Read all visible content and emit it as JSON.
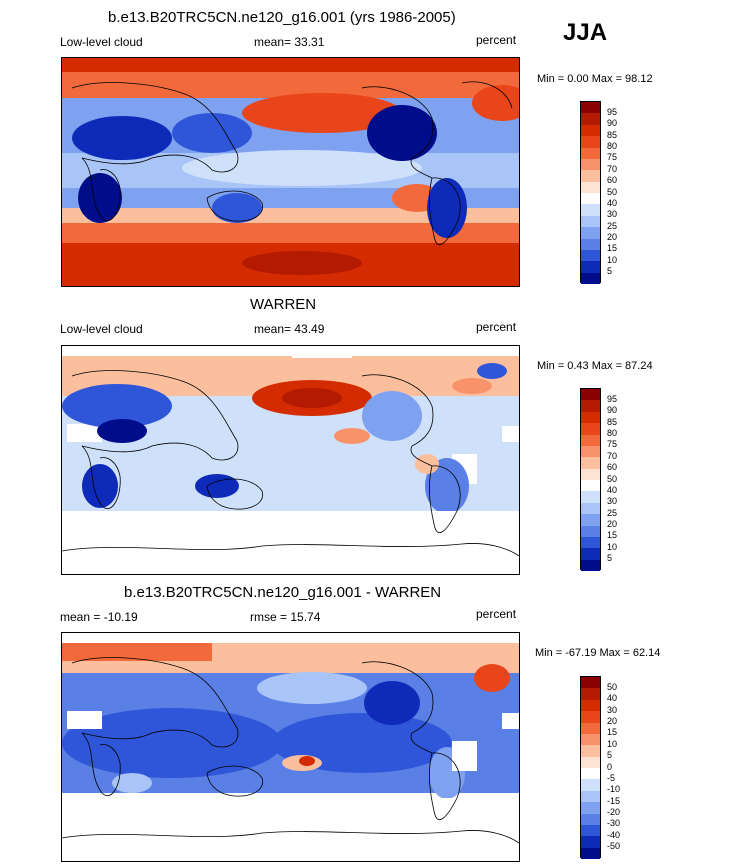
{
  "season": "JJA",
  "panels": [
    {
      "title": "b.e13.B20TRC5CN.ne120_g16.001 (yrs 1986-2005)",
      "left_label": "Low-level cloud",
      "center_label": "mean=  33.31",
      "right_label": "percent",
      "minmax": "Min =   0.00 Max =  98.12",
      "colorbar": {
        "labels": [
          "95",
          "90",
          "85",
          "80",
          "75",
          "70",
          "60",
          "50",
          "40",
          "30",
          "25",
          "20",
          "15",
          "10",
          "5"
        ],
        "colors": [
          "#8b0000",
          "#b41a00",
          "#d42c00",
          "#e8451a",
          "#f26a3c",
          "#f8926a",
          "#fbbf9e",
          "#fde3d3",
          "#ffffff",
          "#cfe0fb",
          "#a9c4f6",
          "#7ea2ef",
          "#5a80e6",
          "#2f56d8",
          "#0d2bb8",
          "#000d8a"
        ]
      }
    },
    {
      "title": "WARREN",
      "left_label": "Low-level cloud",
      "center_label": "mean=  43.49",
      "right_label": "percent",
      "minmax": "Min =   0.43 Max =  87.24",
      "colorbar": {
        "labels": [
          "95",
          "90",
          "85",
          "80",
          "75",
          "70",
          "60",
          "50",
          "40",
          "30",
          "25",
          "20",
          "15",
          "10",
          "5"
        ],
        "colors": [
          "#8b0000",
          "#b41a00",
          "#d42c00",
          "#e8451a",
          "#f26a3c",
          "#f8926a",
          "#fbbf9e",
          "#fde3d3",
          "#ffffff",
          "#cfe0fb",
          "#a9c4f6",
          "#7ea2ef",
          "#5a80e6",
          "#2f56d8",
          "#0d2bb8",
          "#000d8a"
        ]
      }
    },
    {
      "title": "b.e13.B20TRC5CN.ne120_g16.001 - WARREN",
      "left_label": "mean = -10.19",
      "center_label": "rmse =  15.74",
      "right_label": "percent",
      "minmax": "Min = -67.19 Max =  62.14",
      "colorbar": {
        "labels": [
          "50",
          "40",
          "30",
          "20",
          "15",
          "10",
          "5",
          "0",
          "-5",
          "-10",
          "-15",
          "-20",
          "-30",
          "-40",
          "-50"
        ],
        "colors": [
          "#8b0000",
          "#b41a00",
          "#d42c00",
          "#e8451a",
          "#f26a3c",
          "#f8926a",
          "#fbbf9e",
          "#fde3d3",
          "#ffffff",
          "#cfe0fb",
          "#a9c4f6",
          "#7ea2ef",
          "#5a80e6",
          "#2f56d8",
          "#0d2bb8",
          "#000d8a"
        ]
      }
    }
  ]
}
